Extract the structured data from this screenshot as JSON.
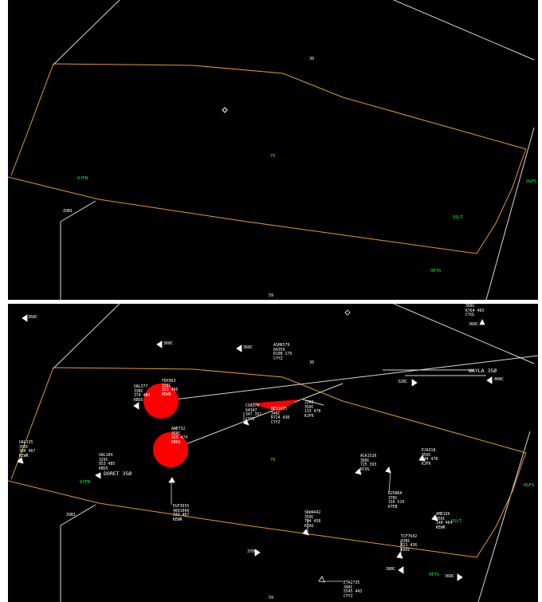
{
  "colors": {
    "background": "#000000",
    "sector_line": "#e39a2d",
    "boundary_line": "#d8d8d8",
    "fix_label": "#00ff3c",
    "conflict_circle": "#ff0000",
    "target": "#ffffff"
  },
  "top_view": {
    "fixes": [
      "OJFN",
      "OSLT",
      "OETG",
      "OGFS"
    ],
    "labels": {
      "upper_marker": "30",
      "center_number": "79",
      "bottom_number": "59",
      "boundary_label": "ZOB1"
    }
  },
  "bottom_view": {
    "fixes": [
      "OJFN",
      "OSLT",
      "OETG",
      "OGFS"
    ],
    "labels": {
      "upper_marker": "30",
      "center_number": "79",
      "bottom_number": "59",
      "boundary_label": "ZOB1",
      "doret_label": "DORET 35Ø",
      "waila_label": "WAYLA 35Ø"
    },
    "limited_tags": {
      "t1": "368C",
      "t2": "368C",
      "t3": "368C",
      "t4": "328C",
      "t5": "408C",
      "t6": "378C",
      "t7": "368C",
      "t8": "388C",
      "t9": "368C",
      "t10": "378C"
    },
    "datablocks": {
      "ual377": [
        "UAL377",
        "338C",
        "374  484",
        "KBOS"
      ],
      "fdx1": [
        "FDX963",
        "338C",
        "323  466",
        "KEWR"
      ],
      "awe732": [
        "AWE732",
        "350C",
        "325  474",
        "KBOS"
      ],
      "ual184": [
        "UAL184",
        "329C",
        "853  485",
        "KBOS"
      ],
      "ual135": [
        "UAL135",
        "350C",
        "396  467",
        "KEWR"
      ],
      "coa76": [
        "COA376",
        "64347",
        "347  351",
        "CYYZ"
      ],
      "top": [
        "ASH6579",
        "64359",
        "R108  179",
        "CYYZ"
      ],
      "mid": [
        "MES3605",
        "348C",
        "R724  438",
        "CYYZ"
      ],
      "jza": [
        "JZA9",
        "350C",
        "133  478",
        "KJFK"
      ],
      "aca1526": [
        "ACA1526",
        "368C",
        "725  393",
        "KCVG"
      ],
      "eja": [
        "EJA318",
        "350C",
        "344  478",
        "KJFK"
      ],
      "r258": [
        "R258KA",
        "378C",
        "316  519",
        "KTEB"
      ],
      "egf": [
        "EGF3655",
        "4891060",
        "333  467",
        "KEWR"
      ],
      "skw": [
        "SKW4442",
        "350C",
        "794  458",
        "KIAG"
      ],
      "amd": [
        "AMD199",
        "350C",
        "148  464",
        "KEWR"
      ],
      "tcf": [
        "TCF7642",
        "338C",
        "R21  436",
        "KAOC"
      ],
      "eta": [
        "ETA2735",
        "340C",
        "5545  443",
        "CYYZ"
      ],
      "corner": [
        "368C",
        "K764  493",
        "CYUL"
      ]
    }
  }
}
